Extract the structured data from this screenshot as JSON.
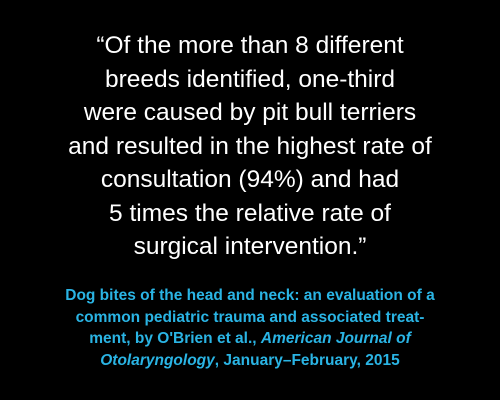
{
  "quote": {
    "lines": [
      "“Of the more than 8 different",
      "breeds identified, one-third",
      "were caused by pit bull terriers",
      "and resulted in the highest rate of",
      "consultation (94%) and had",
      "5 times the relative rate of",
      "surgical intervention.”"
    ]
  },
  "citation": {
    "lines": [
      [
        "Dog bites of the head and neck: an evaluation of a"
      ],
      [
        "common pediatric trauma and associated treat-"
      ],
      [
        "ment, by O'Brien et al., ",
        {
          "italic": "American Journal of"
        }
      ],
      [
        {
          "italic": "Otolaryngology"
        },
        ", January–February, 2015"
      ]
    ]
  }
}
